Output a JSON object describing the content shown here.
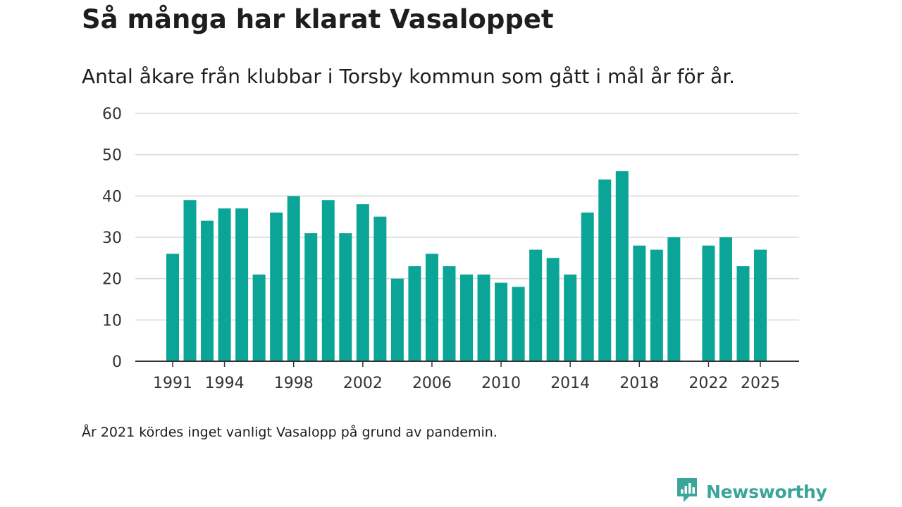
{
  "header": {
    "title": "Så många har klarat Vasaloppet",
    "subtitle": "Antal åkare från klubbar i Torsby kommun som gått i mål år för år."
  },
  "footer": {
    "note": "År 2021 kördes inget vanligt Vasalopp på grund av pandemin.",
    "brand": "Newsworthy",
    "brand_icon": "newsworthy-logo-icon"
  },
  "colors": {
    "bar": "#0aa596",
    "grid": "#d9d9d9",
    "axis": "#333333",
    "brand": "#3aa59a"
  },
  "chart_data": {
    "type": "bar",
    "title": "Så många har klarat Vasaloppet",
    "xlabel": "",
    "ylabel": "",
    "ylim": [
      0,
      60
    ],
    "yticks": [
      0,
      10,
      20,
      30,
      40,
      50,
      60
    ],
    "grid": true,
    "categories": [
      1991,
      1992,
      1993,
      1994,
      1995,
      1996,
      1997,
      1998,
      1999,
      2000,
      2001,
      2002,
      2003,
      2004,
      2005,
      2006,
      2007,
      2008,
      2009,
      2010,
      2011,
      2012,
      2013,
      2014,
      2015,
      2016,
      2017,
      2018,
      2019,
      2020,
      2021,
      2022,
      2023,
      2024,
      2025
    ],
    "values": [
      26,
      39,
      34,
      37,
      37,
      21,
      36,
      40,
      31,
      39,
      31,
      38,
      35,
      20,
      23,
      26,
      23,
      21,
      21,
      19,
      18,
      27,
      25,
      21,
      36,
      44,
      46,
      28,
      27,
      30,
      null,
      28,
      30,
      23,
      27
    ],
    "xtick_labels": [
      "1991",
      "1994",
      "1998",
      "2002",
      "2006",
      "2010",
      "2014",
      "2018",
      "2022",
      "2025"
    ]
  }
}
